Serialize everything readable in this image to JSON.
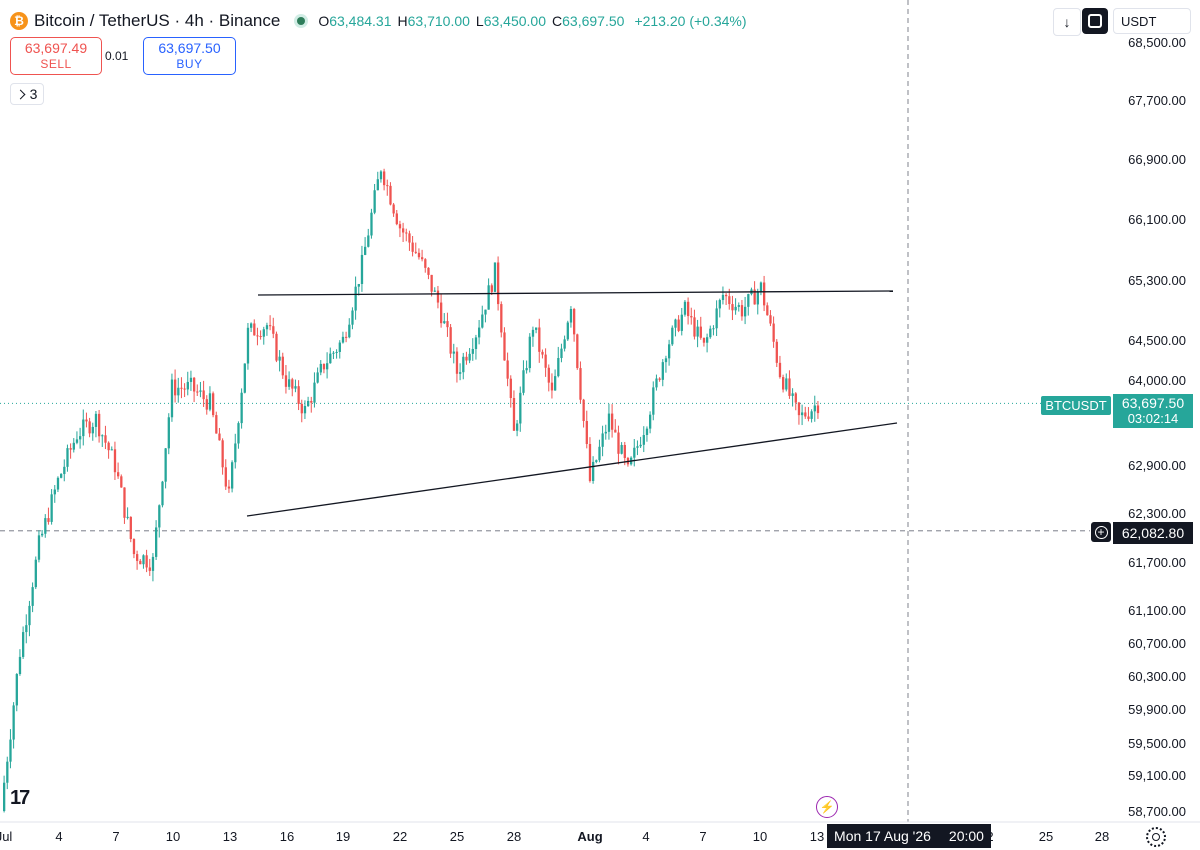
{
  "header": {
    "logo_letter": "₿",
    "title": "Bitcoin / TetherUS · 4h · Binance",
    "ohlc": [
      {
        "k": "O",
        "v": "63,484.31"
      },
      {
        "k": "H",
        "v": "63,710.00"
      },
      {
        "k": "L",
        "v": "63,450.00"
      },
      {
        "k": "C",
        "v": "63,697.50"
      }
    ],
    "change": "+213.20 (+0.34%)"
  },
  "trade": {
    "sell_price": "63,697.49",
    "sell_label": "SELL",
    "buy_price": "63,697.50",
    "buy_label": "BUY",
    "spread": "0.01"
  },
  "indicators_toggle": {
    "count": "3"
  },
  "toolbar": {
    "download_icon": "↓",
    "currency": "USDT"
  },
  "watermark": "17",
  "bottom": {
    "crosshair_date": "Mon 17 Aug '26",
    "crosshair_time": "20:00"
  },
  "tags": {
    "symbol": "BTCUSDT",
    "last_price": "63,697.50",
    "countdown": "03:02:14",
    "crosshair_price": "62,082.80"
  },
  "colors": {
    "up": "#26a69a",
    "down": "#ef5350",
    "text": "#131722",
    "grid_dash": "#9598a1"
  },
  "chart_data": {
    "type": "candlestick",
    "symbol": "BTCUSDT",
    "interval": "4h",
    "y_tick_labels": [
      "68,500.00",
      "67,700.00",
      "66,900.00",
      "66,100.00",
      "65,300.00",
      "64,500.00",
      "64,000.00",
      "62,900.00",
      "62,300.00",
      "61,700.00",
      "61,100.00",
      "60,700.00",
      "60,300.00",
      "59,900.00",
      "59,500.00",
      "59,100.00",
      "58,700.00"
    ],
    "x_tick_labels": [
      "Jul",
      "4",
      "7",
      "10",
      "13",
      "16",
      "19",
      "22",
      "25",
      "28",
      "Aug",
      "4",
      "7",
      "10",
      "13",
      "2",
      "25",
      "28"
    ],
    "crosshair_price": 62082.8,
    "last_close": 63697.5,
    "ohlc_path": [
      {
        "date": "Jul 1",
        "p": 58700
      },
      {
        "date": "Jul 2",
        "p": 60600
      },
      {
        "date": "Jul 3",
        "p": 61900
      },
      {
        "date": "Jul 4",
        "p": 62700
      },
      {
        "date": "Jul 5",
        "p": 63300
      },
      {
        "date": "Jul 6",
        "p": 63500
      },
      {
        "date": "Jul 7",
        "p": 62900
      },
      {
        "date": "Jul 8",
        "p": 61800
      },
      {
        "date": "Jul 9",
        "p": 61700
      },
      {
        "date": "Jul 10",
        "p": 63900
      },
      {
        "date": "Jul 11",
        "p": 63900
      },
      {
        "date": "Jul 12",
        "p": 63700
      },
      {
        "date": "Jul 13",
        "p": 62500
      },
      {
        "date": "Jul 14",
        "p": 64600
      },
      {
        "date": "Jul 15",
        "p": 64700
      },
      {
        "date": "Jul 16",
        "p": 64000
      },
      {
        "date": "Jul 17",
        "p": 63600
      },
      {
        "date": "Jul 18",
        "p": 64200
      },
      {
        "date": "Jul 19",
        "p": 64500
      },
      {
        "date": "Jul 20",
        "p": 65500
      },
      {
        "date": "Jul 21",
        "p": 66800
      },
      {
        "date": "Jul 22",
        "p": 66000
      },
      {
        "date": "Jul 23",
        "p": 65600
      },
      {
        "date": "Jul 24",
        "p": 65000
      },
      {
        "date": "Jul 25",
        "p": 64100
      },
      {
        "date": "Jul 26",
        "p": 64600
      },
      {
        "date": "Jul 27",
        "p": 65400
      },
      {
        "date": "Jul 28",
        "p": 63300
      },
      {
        "date": "Jul 29",
        "p": 64700
      },
      {
        "date": "Jul 30",
        "p": 63800
      },
      {
        "date": "Jul 31",
        "p": 65000
      },
      {
        "date": "Aug 1",
        "p": 62700
      },
      {
        "date": "Aug 2",
        "p": 63500
      },
      {
        "date": "Aug 3",
        "p": 62800
      },
      {
        "date": "Aug 4",
        "p": 63500
      },
      {
        "date": "Aug 5",
        "p": 64400
      },
      {
        "date": "Aug 6",
        "p": 64900
      },
      {
        "date": "Aug 7",
        "p": 64400
      },
      {
        "date": "Aug 8",
        "p": 65100
      },
      {
        "date": "Aug 9",
        "p": 64900
      },
      {
        "date": "Aug 10",
        "p": 65200
      },
      {
        "date": "Aug 11",
        "p": 64100
      },
      {
        "date": "Aug 12",
        "p": 63500
      },
      {
        "date": "Aug 13",
        "p": 63700
      }
    ]
  }
}
